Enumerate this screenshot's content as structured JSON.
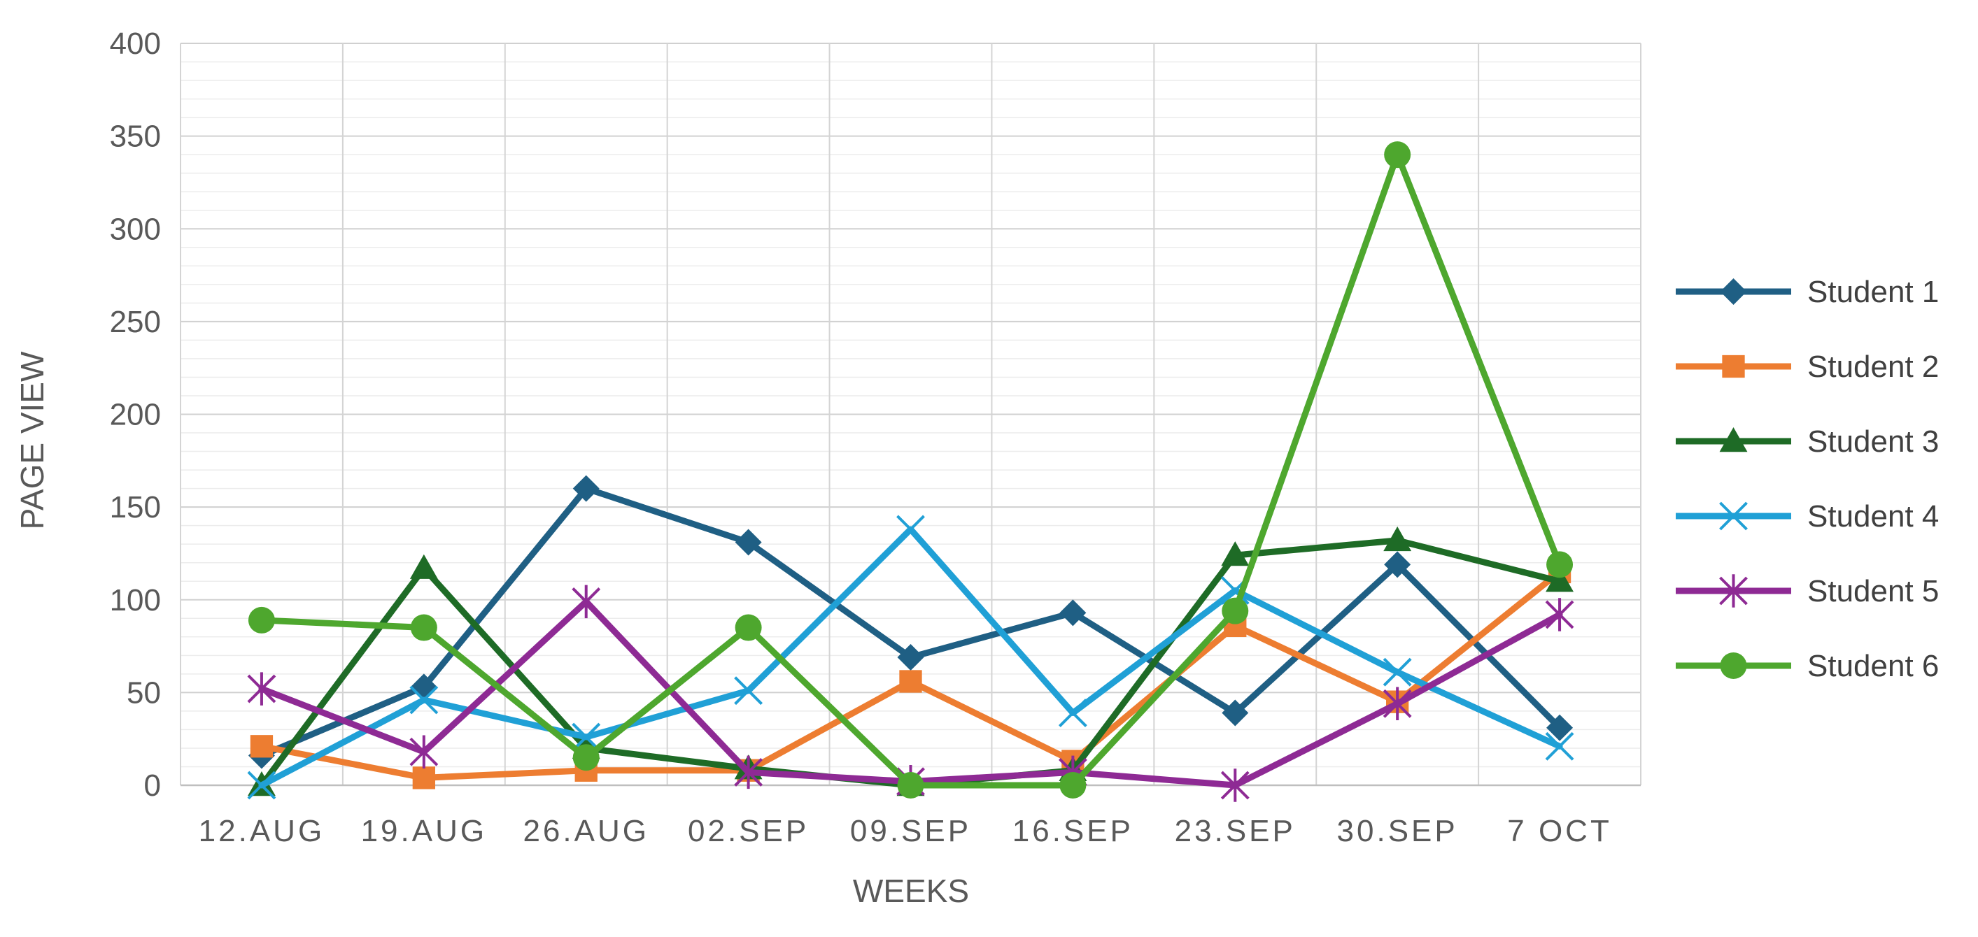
{
  "chart_data": {
    "type": "line",
    "title": "",
    "xlabel": "WEEKS",
    "ylabel": "PAGE VIEW",
    "ylim": [
      0,
      400
    ],
    "yticks": [
      0,
      50,
      100,
      150,
      200,
      250,
      300,
      350,
      400
    ],
    "grid": true,
    "legend_position": "right",
    "categories": [
      "12.AUG",
      "19.AUG",
      "26.AUG",
      "02.SEP",
      "09.SEP",
      "16.SEP",
      "23.SEP",
      "30.SEP",
      "7 OCT"
    ],
    "series": [
      {
        "name": "Student 1",
        "color": "#1f5f84",
        "marker": "diamond",
        "values": [
          16,
          53,
          160,
          131,
          69,
          93,
          39,
          119,
          31
        ]
      },
      {
        "name": "Student 2",
        "color": "#ed7d31",
        "marker": "square",
        "values": [
          21,
          4,
          8,
          8,
          56,
          13,
          86,
          45,
          115
        ]
      },
      {
        "name": "Student 3",
        "color": "#1e6b26",
        "marker": "triangle",
        "values": [
          0,
          117,
          20,
          9,
          0,
          8,
          124,
          132,
          110
        ]
      },
      {
        "name": "Student 4",
        "color": "#20a0d6",
        "marker": "x",
        "values": [
          0,
          46,
          26,
          51,
          138,
          39,
          105,
          61,
          21
        ]
      },
      {
        "name": "Student 5",
        "color": "#8e2a94",
        "marker": "star",
        "values": [
          52,
          18,
          99,
          7,
          2,
          7,
          0,
          44,
          92
        ]
      },
      {
        "name": "Student 6",
        "color": "#4ea72e",
        "marker": "circle",
        "values": [
          89,
          85,
          15,
          85,
          0,
          0,
          94,
          340,
          119
        ]
      }
    ]
  }
}
